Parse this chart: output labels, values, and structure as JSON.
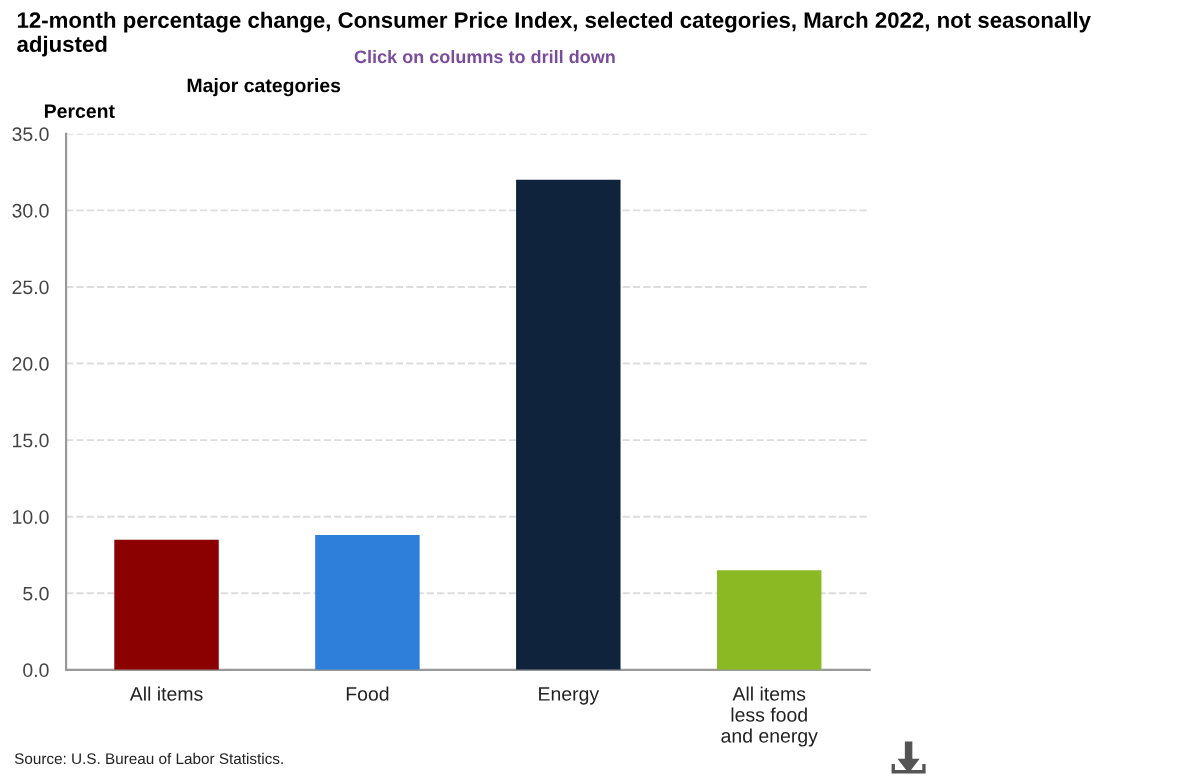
{
  "chart_data": {
    "type": "bar",
    "title": "12-month percentage change, Consumer Price Index, selected categories, March 2022, not seasonally adjusted",
    "xlabel": "Major categories",
    "ylabel": "Percent",
    "categories": [
      "All items",
      "Food",
      "Energy",
      "All items\nless food\nand energy"
    ],
    "values": [
      8.5,
      8.8,
      32.0,
      6.5
    ],
    "colors": [
      "#8b0000",
      "#2d7fd9",
      "#0f233c",
      "#8ab923"
    ],
    "ylim": [
      0,
      35
    ],
    "yticks": [
      {
        "value": 0,
        "label": "0.0"
      },
      {
        "value": 5,
        "label": "5.0"
      },
      {
        "value": 10,
        "label": "10.0"
      },
      {
        "value": 15,
        "label": "15.0"
      },
      {
        "value": 20,
        "label": "20.0"
      },
      {
        "value": 25,
        "label": "25.0"
      },
      {
        "value": 30,
        "label": "30.0"
      },
      {
        "value": 35,
        "label": "35.0"
      }
    ],
    "grid": "y",
    "annotations": [
      "Click on columns to drill down",
      "Source: U.S. Bureau of Labor Statistics."
    ]
  }
}
